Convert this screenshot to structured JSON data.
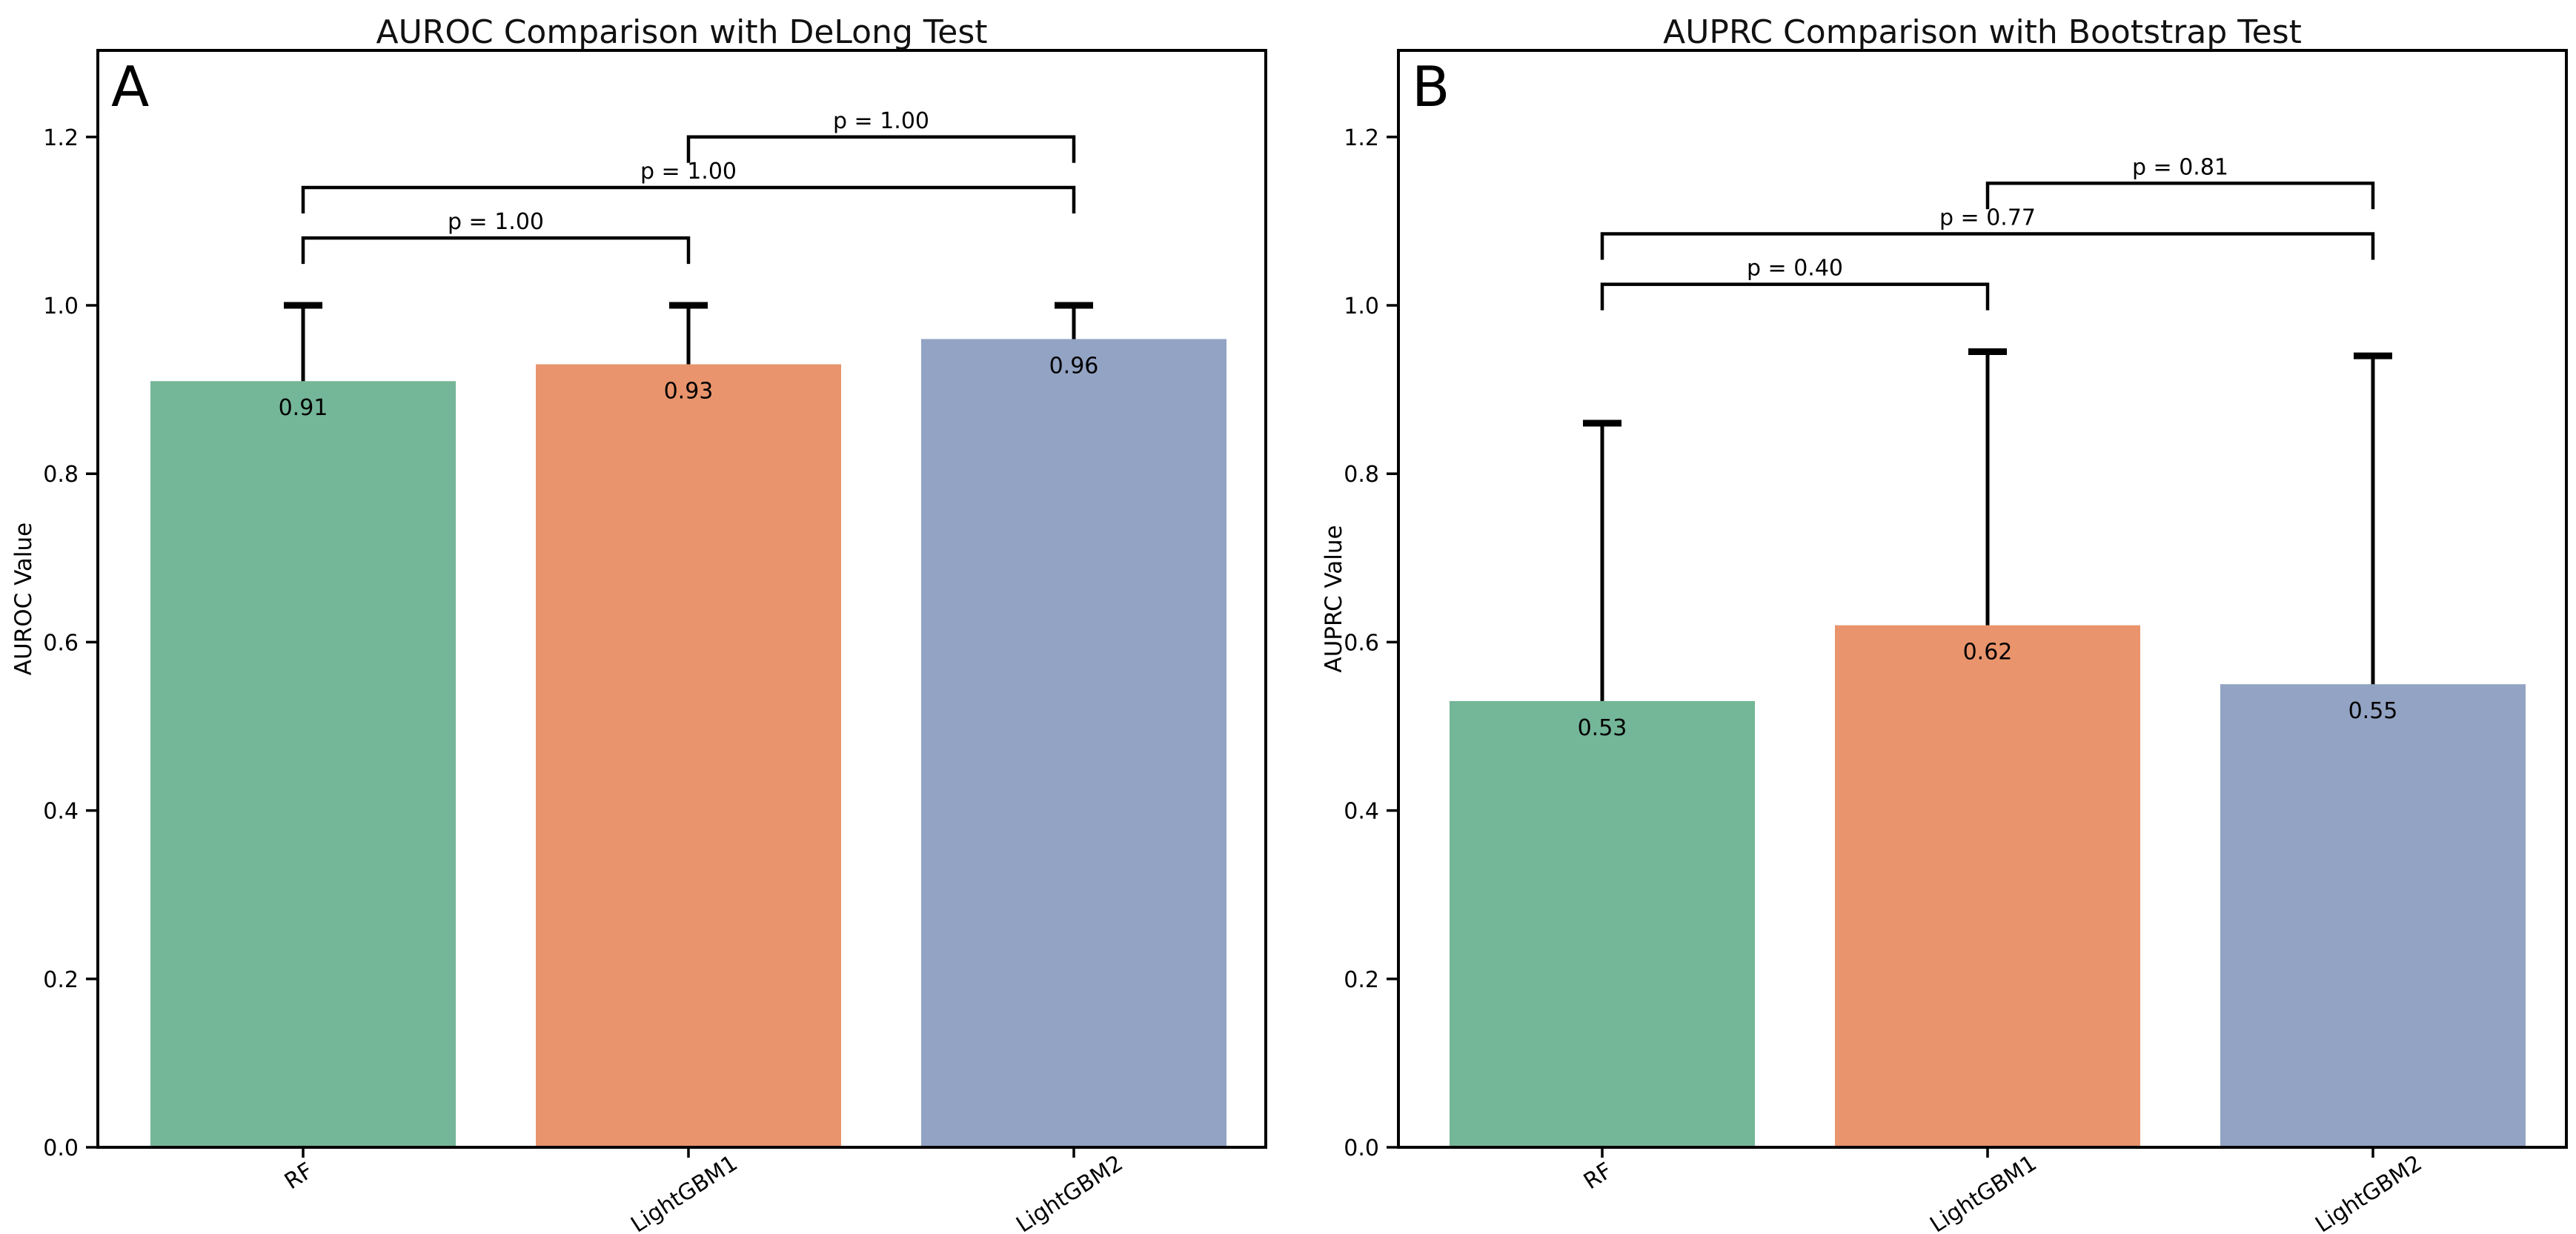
{
  "colors": {
    "bar_palette": [
      "#74B698",
      "#E9946C",
      "#93A3C4"
    ],
    "error_bar": "#000000",
    "bracket_line": "#000000",
    "p_value_text": "#2222CC",
    "axis_line": "#000000",
    "tick_text": "#000000",
    "bar_label_text": "#000000",
    "background": "#FFFFFF"
  },
  "chart_data": [
    {
      "type": "bar",
      "panel_label": "A",
      "title": "AUROC Comparison with DeLong Test",
      "ylabel": "AUROC Value",
      "xlabel": "",
      "categories": [
        "RF",
        "LightGBM1",
        "LightGBM2"
      ],
      "values": [
        0.91,
        0.93,
        0.96
      ],
      "bar_labels": [
        "0.91",
        "0.93",
        "0.96"
      ],
      "error_bar_tops": [
        1.0,
        1.0,
        1.0
      ],
      "p_brackets": [
        {
          "pair": [
            0,
            1
          ],
          "label": "p = 1.00",
          "height": 1.08
        },
        {
          "pair": [
            0,
            2
          ],
          "label": "p = 1.00",
          "height": 1.14
        },
        {
          "pair": [
            1,
            2
          ],
          "label": "p = 1.00",
          "height": 1.2
        }
      ],
      "ylim": [
        0.0,
        1.303
      ],
      "yticks": [
        0.0,
        0.2,
        0.4,
        0.6,
        0.8,
        1.0,
        1.2
      ],
      "ytick_labels": [
        "0.0",
        "0.2",
        "0.4",
        "0.6",
        "0.8",
        "1.0",
        "1.2"
      ],
      "grid": "off",
      "legend": "none"
    },
    {
      "type": "bar",
      "panel_label": "B",
      "title": "AUPRC Comparison with Bootstrap Test",
      "ylabel": "AUPRC Value",
      "xlabel": "",
      "categories": [
        "RF",
        "LightGBM1",
        "LightGBM2"
      ],
      "values": [
        0.53,
        0.62,
        0.55
      ],
      "bar_labels": [
        "0.53",
        "0.62",
        "0.55"
      ],
      "error_bar_tops": [
        0.86,
        0.945,
        0.94
      ],
      "p_brackets": [
        {
          "pair": [
            0,
            1
          ],
          "label": "p = 0.40",
          "height": 1.025
        },
        {
          "pair": [
            0,
            2
          ],
          "label": "p = 0.77",
          "height": 1.085
        },
        {
          "pair": [
            1,
            2
          ],
          "label": "p = 0.81",
          "height": 1.145
        }
      ],
      "ylim": [
        0.0,
        1.303
      ],
      "yticks": [
        0.0,
        0.2,
        0.4,
        0.6,
        0.8,
        1.0,
        1.2
      ],
      "ytick_labels": [
        "0.0",
        "0.2",
        "0.4",
        "0.6",
        "0.8",
        "1.0",
        "1.2"
      ],
      "grid": "off",
      "legend": "none"
    }
  ]
}
